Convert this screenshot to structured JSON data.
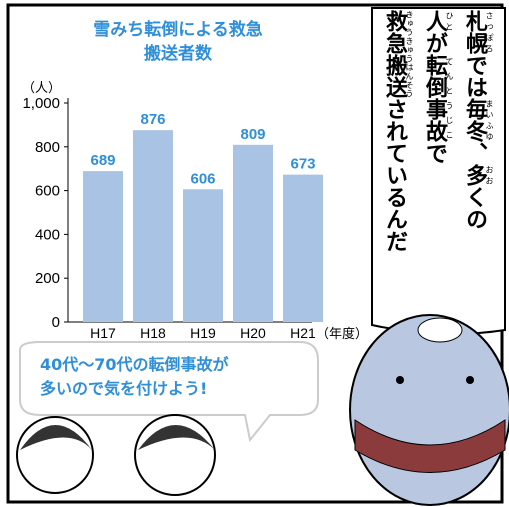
{
  "chart_data": {
    "type": "bar",
    "title": "雪みち転倒による救急搬送者数",
    "y_unit": "（人）",
    "x_unit": "（年度）",
    "categories": [
      "H17",
      "H18",
      "H19",
      "H20",
      "H21"
    ],
    "values": [
      689,
      876,
      606,
      809,
      673
    ],
    "color": "#a9c3e4",
    "value_label_color": "#2f8fd8",
    "ylim": [
      0,
      1000
    ],
    "yticks": [
      0,
      200,
      400,
      600,
      800,
      {
        "value": 1000,
        "label": "1,000"
      }
    ]
  },
  "speech": {
    "lines": [
      [
        {
          "text": "札幌",
          "ruby": "さっぽろ"
        },
        {
          "text": "では"
        },
        {
          "text": "毎冬",
          "ruby": "まいふゆ"
        },
        {
          "text": "、"
        },
        {
          "text": "多",
          "ruby": "おお"
        },
        {
          "text": "くの"
        }
      ],
      [
        {
          "text": "人",
          "ruby": "ひと"
        },
        {
          "text": "が"
        },
        {
          "text": "転倒事故",
          "ruby": "てんとうじこ"
        },
        {
          "text": "で"
        }
      ],
      [
        {
          "text": "救急搬送",
          "ruby": "きゅうきゅうはんそう"
        },
        {
          "text": "されているんだ"
        }
      ]
    ]
  },
  "caption": {
    "lines": [
      "40代〜70代の転倒事故が",
      "多いので気を付けよう!"
    ]
  }
}
